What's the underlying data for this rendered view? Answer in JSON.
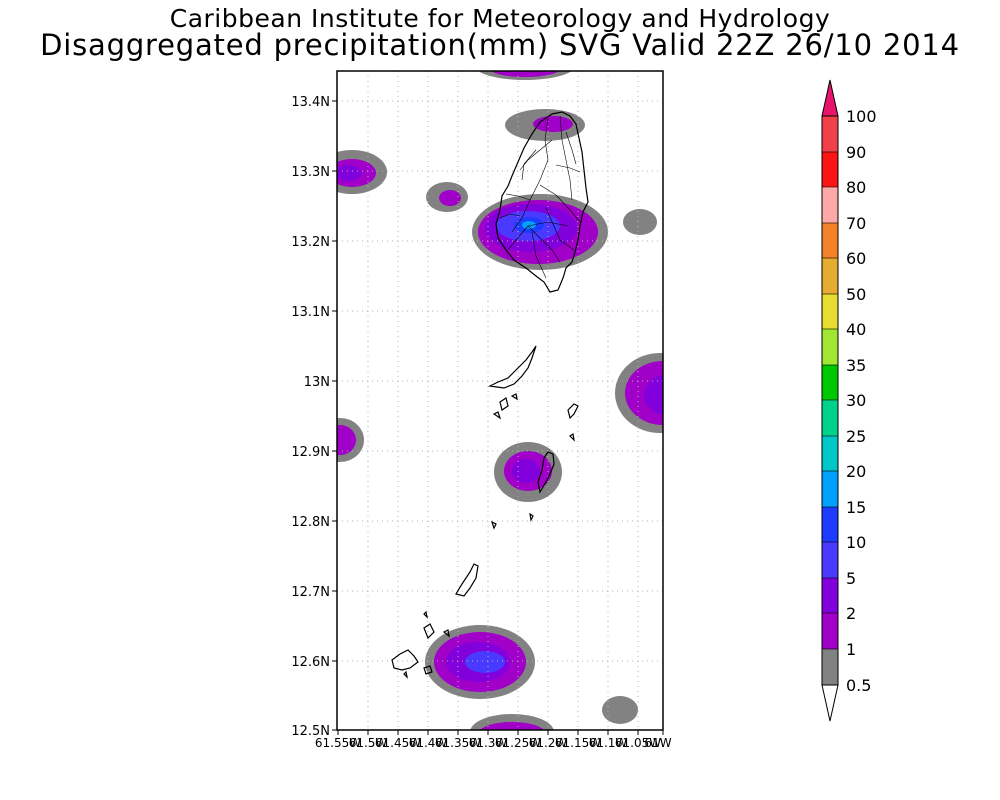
{
  "header": {
    "institute": "Caribbean Institute for Meteorology and Hydrology",
    "product": "Disaggregated precipitation(mm) SVG Valid 22Z 26/10 2014"
  },
  "map": {
    "lat_labels": [
      "13.4N",
      "13.3N",
      "13.2N",
      "13.1N",
      "13N",
      "12.9N",
      "12.8N",
      "12.7N",
      "12.6N",
      "12.5N"
    ],
    "lon_labels": [
      "61.55W",
      "61.5W",
      "61.45W",
      "61.4W",
      "61.35W",
      "61.3W",
      "61.25W",
      "61.2W",
      "61.15W",
      "61.1W",
      "61.05W",
      "61W"
    ],
    "gridlines": true,
    "islands": [
      "Saint Vincent",
      "Bequia",
      "Mustique",
      "Canouan",
      "Union Island",
      "Carriacou"
    ]
  },
  "colorbar": {
    "labels": [
      "100",
      "90",
      "80",
      "70",
      "60",
      "50",
      "40",
      "35",
      "30",
      "25",
      "20",
      "15",
      "10",
      "5",
      "2",
      "1",
      "0.5"
    ],
    "colors": {
      "above_100": "#e8146c",
      "90_100": "#f0404a",
      "80_90": "#fa1414",
      "70_80": "#ffa8a8",
      "60_70": "#f48228",
      "50_60": "#e6ac30",
      "40_50": "#e6dc32",
      "35_40": "#a0e632",
      "30_35": "#00c800",
      "25_30": "#00d28c",
      "20_25": "#00c8c8",
      "15_20": "#00a0ff",
      "10_15": "#1e3cff",
      "5_10": "#4a3aff",
      "2_5": "#8200dc",
      "1_2": "#a000c8",
      "0.5_1": "#828282",
      "below_0.5": "#ffffff"
    }
  }
}
